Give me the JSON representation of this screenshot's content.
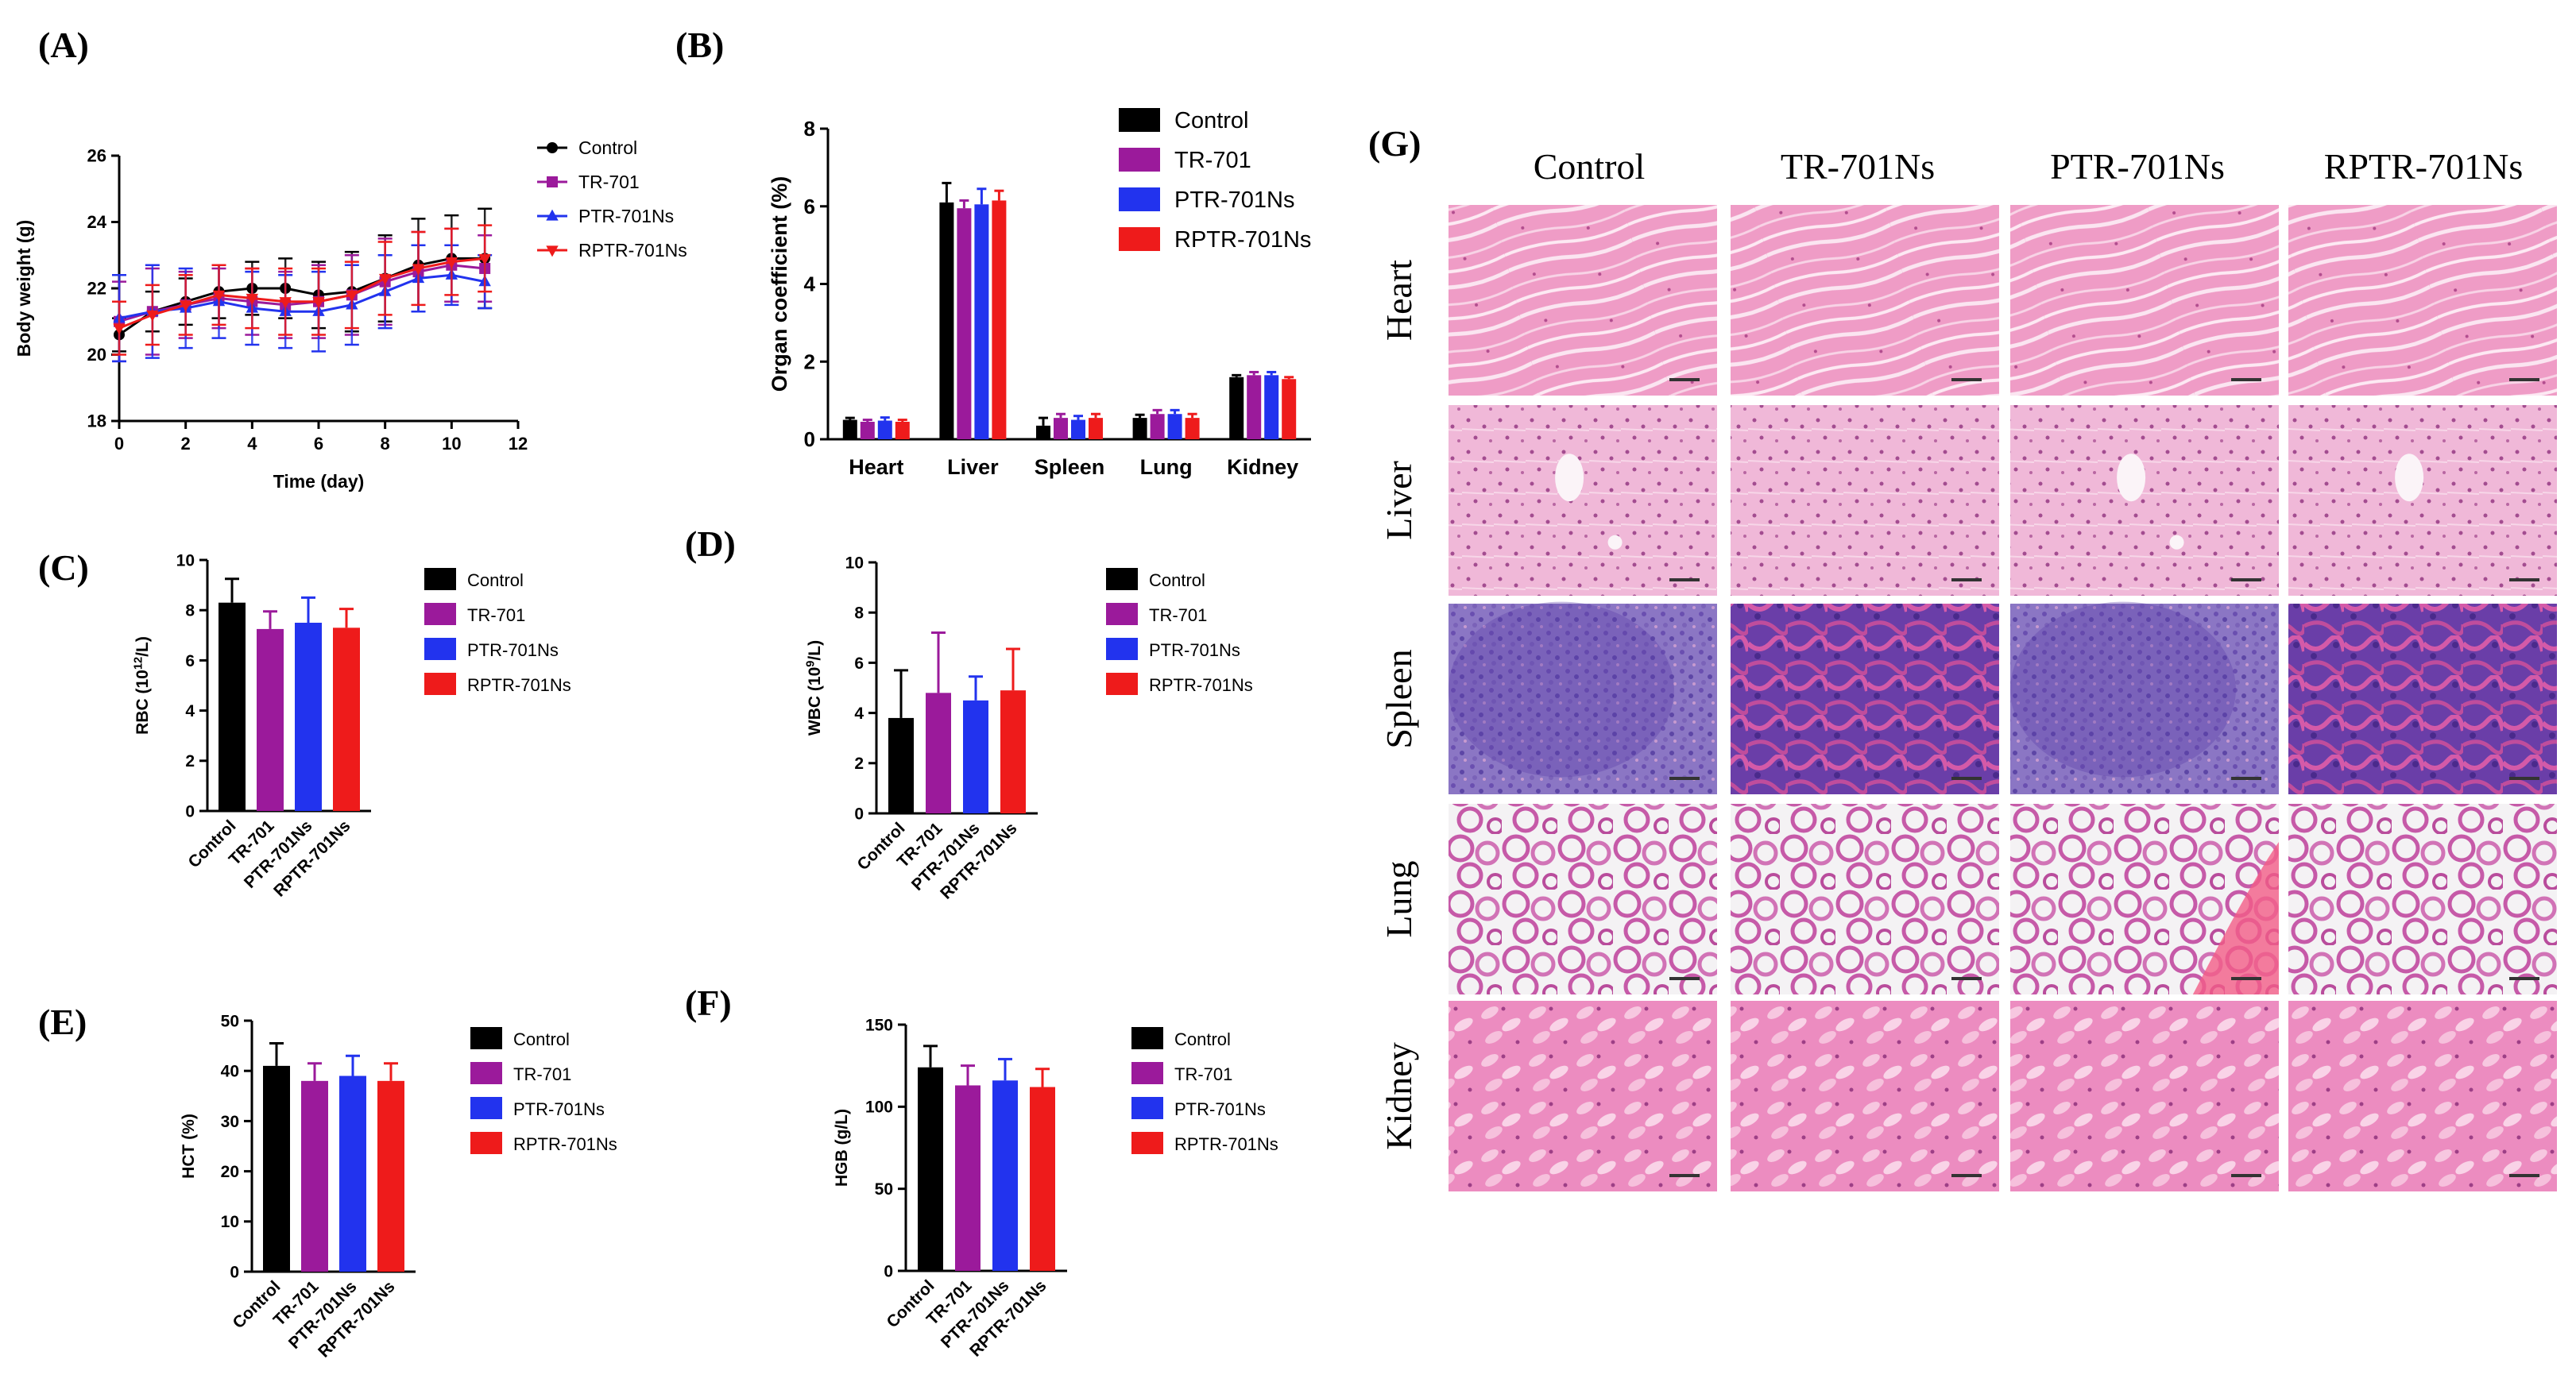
{
  "colors": {
    "Control": "#000000",
    "TR-701": "#9b1a9b",
    "PTR-701Ns": "#2233ee",
    "RPTR-701Ns": "#ee1b1b"
  },
  "panel_labels": [
    "(A)",
    "(B)",
    "(C)",
    "(D)",
    "(E)",
    "(F)",
    "(G)"
  ],
  "chart_data": [
    {
      "id": "A",
      "type": "line",
      "xlabel": "Time (day)",
      "ylabel": "Body weight (g)",
      "xlim": [
        0,
        12
      ],
      "ylim": [
        18,
        26
      ],
      "xticks": [
        0,
        2,
        4,
        6,
        8,
        10,
        12
      ],
      "yticks": [
        18,
        20,
        22,
        24,
        26
      ],
      "legend_position": "right",
      "markers": {
        "Control": "circle",
        "TR-701": "square",
        "PTR-701Ns": "triangle-up",
        "RPTR-701Ns": "triangle-down"
      },
      "x": [
        0,
        1,
        2,
        3,
        4,
        5,
        6,
        7,
        8,
        9,
        10,
        11
      ],
      "series": [
        {
          "name": "Control",
          "values": [
            20.6,
            21.3,
            21.6,
            21.9,
            22.0,
            22.0,
            21.8,
            21.9,
            22.3,
            22.7,
            22.9,
            22.9
          ],
          "errors": [
            0.5,
            0.6,
            0.7,
            0.8,
            0.8,
            0.9,
            1.0,
            1.2,
            1.3,
            1.4,
            1.3,
            1.5
          ]
        },
        {
          "name": "TR-701",
          "values": [
            21.0,
            21.3,
            21.5,
            21.7,
            21.6,
            21.5,
            21.6,
            21.8,
            22.2,
            22.5,
            22.7,
            22.6
          ],
          "errors": [
            1.2,
            1.3,
            1.0,
            0.9,
            1.0,
            1.0,
            1.1,
            1.2,
            1.3,
            1.2,
            1.1,
            1.0
          ]
        },
        {
          "name": "PTR-701Ns",
          "values": [
            21.1,
            21.3,
            21.4,
            21.6,
            21.4,
            21.3,
            21.3,
            21.5,
            21.9,
            22.3,
            22.4,
            22.2
          ],
          "errors": [
            1.3,
            1.4,
            1.2,
            1.1,
            1.1,
            1.1,
            1.2,
            1.2,
            1.1,
            1.0,
            0.9,
            0.8
          ]
        },
        {
          "name": "RPTR-701Ns",
          "values": [
            20.8,
            21.2,
            21.5,
            21.8,
            21.7,
            21.6,
            21.6,
            21.8,
            22.3,
            22.6,
            22.8,
            22.9
          ],
          "errors": [
            0.8,
            0.9,
            0.9,
            0.9,
            0.9,
            1.0,
            1.0,
            1.0,
            1.1,
            1.1,
            1.0,
            1.0
          ]
        }
      ]
    },
    {
      "id": "B",
      "type": "bar",
      "xlabel": "",
      "ylabel": "Organ coefficient (%)",
      "ylim": [
        0,
        8
      ],
      "yticks": [
        0,
        2,
        4,
        6,
        8
      ],
      "legend_position": "top-right",
      "categories": [
        "Heart",
        "Liver",
        "Spleen",
        "Lung",
        "Kidney"
      ],
      "series": [
        {
          "name": "Control",
          "values": [
            0.5,
            6.1,
            0.35,
            0.55,
            1.6
          ],
          "errors": [
            0.05,
            0.5,
            0.2,
            0.08,
            0.05
          ]
        },
        {
          "name": "TR-701",
          "values": [
            0.45,
            5.95,
            0.55,
            0.65,
            1.65
          ],
          "errors": [
            0.05,
            0.2,
            0.1,
            0.1,
            0.08
          ]
        },
        {
          "name": "PTR-701Ns",
          "values": [
            0.48,
            6.05,
            0.5,
            0.65,
            1.65
          ],
          "errors": [
            0.08,
            0.4,
            0.1,
            0.1,
            0.08
          ]
        },
        {
          "name": "RPTR-701Ns",
          "values": [
            0.45,
            6.15,
            0.55,
            0.55,
            1.55
          ],
          "errors": [
            0.05,
            0.25,
            0.1,
            0.1,
            0.05
          ]
        }
      ]
    },
    {
      "id": "C",
      "type": "bar",
      "ylabel_main": "RBC (10",
      "ylabel_sup": "12",
      "ylabel_tail": "/L)",
      "ylim": [
        0,
        10
      ],
      "yticks": [
        0,
        2,
        4,
        6,
        8,
        10
      ],
      "legend_position": "right",
      "categories": [
        "Control",
        "TR-701",
        "PTR-701Ns",
        "RPTR-701Ns"
      ],
      "values": [
        8.3,
        7.25,
        7.5,
        7.3
      ],
      "errors": [
        0.95,
        0.7,
        1.0,
        0.75
      ]
    },
    {
      "id": "D",
      "type": "bar",
      "ylabel_main": "WBC (10",
      "ylabel_sup": "9",
      "ylabel_tail": "/L)",
      "ylim": [
        0,
        10
      ],
      "yticks": [
        0,
        2,
        4,
        6,
        8,
        10
      ],
      "legend_position": "right",
      "categories": [
        "Control",
        "TR-701",
        "PTR-701Ns",
        "RPTR-701Ns"
      ],
      "values": [
        3.8,
        4.8,
        4.5,
        4.9
      ],
      "errors": [
        1.9,
        2.4,
        0.95,
        1.65
      ]
    },
    {
      "id": "E",
      "type": "bar",
      "ylabel_main": "HCT (%)",
      "ylabel_sup": "",
      "ylabel_tail": "",
      "ylim": [
        0,
        50
      ],
      "yticks": [
        0,
        10,
        20,
        30,
        40,
        50
      ],
      "legend_position": "right",
      "categories": [
        "Control",
        "TR-701",
        "PTR-701Ns",
        "RPTR-701Ns"
      ],
      "values": [
        41,
        38,
        39,
        38
      ],
      "errors": [
        4.5,
        3.5,
        4.0,
        3.5
      ]
    },
    {
      "id": "F",
      "type": "bar",
      "ylabel_main": "HGB (g/L)",
      "ylabel_sup": "",
      "ylabel_tail": "",
      "ylim": [
        0,
        150
      ],
      "yticks": [
        0,
        50,
        100,
        150
      ],
      "legend_position": "right",
      "categories": [
        "Control",
        "TR-701",
        "PTR-701Ns",
        "RPTR-701Ns"
      ],
      "values": [
        124,
        113,
        116,
        112
      ],
      "errors": [
        13,
        12,
        13,
        11
      ]
    }
  ],
  "histology": {
    "columns": [
      "Control",
      "TR-701Ns",
      "PTR-701Ns",
      "RPTR-701Ns"
    ],
    "rows": [
      "Heart",
      "Liver",
      "Spleen",
      "Lung",
      "Kidney"
    ]
  }
}
